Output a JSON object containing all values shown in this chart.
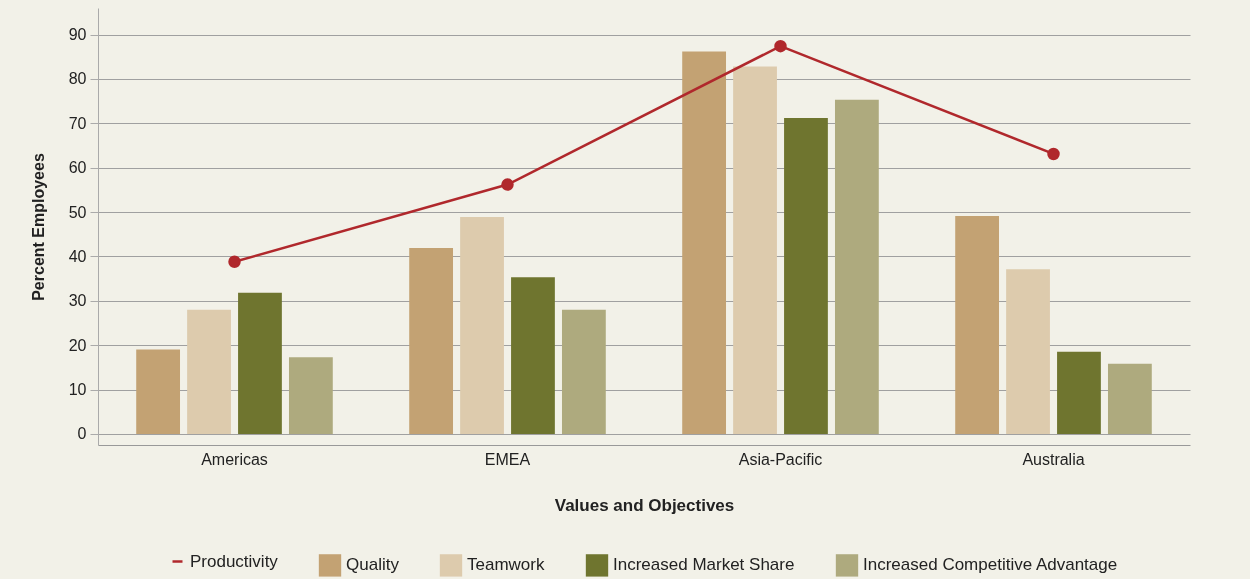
{
  "chart_data": {
    "type": "bar",
    "xlabel": "Values and Objectives",
    "ylabel": "Percent Employees",
    "categories": [
      "Americas",
      "EMEA",
      "Asia-Pacific",
      "Australia"
    ],
    "series": [
      {
        "name": "Quality",
        "color": "#c3a273",
        "values": [
          19.0,
          41.9,
          86.2,
          49.1
        ]
      },
      {
        "name": "Teamwork",
        "color": "#ddcbad",
        "values": [
          28.0,
          48.9,
          82.8,
          37.1
        ]
      },
      {
        "name": "Increased Market Share",
        "color": "#6f752f",
        "values": [
          31.8,
          35.3,
          71.2,
          18.5
        ]
      },
      {
        "name": "Increased Competitive Advantage",
        "color": "#aeaa7e",
        "values": [
          17.3,
          28.0,
          75.3,
          15.8
        ]
      },
      {
        "name": "Productivity",
        "type": "line",
        "color": "#b0282c",
        "values": [
          38.8,
          56.2,
          87.4,
          63.1
        ]
      }
    ],
    "ylim": [
      -2.5,
      96
    ],
    "yticks": [
      0,
      10,
      20,
      30,
      40,
      50,
      60,
      70,
      80,
      90
    ],
    "grid": "y",
    "legend": "bottom",
    "marker": "circle",
    "line_style": "solid"
  }
}
